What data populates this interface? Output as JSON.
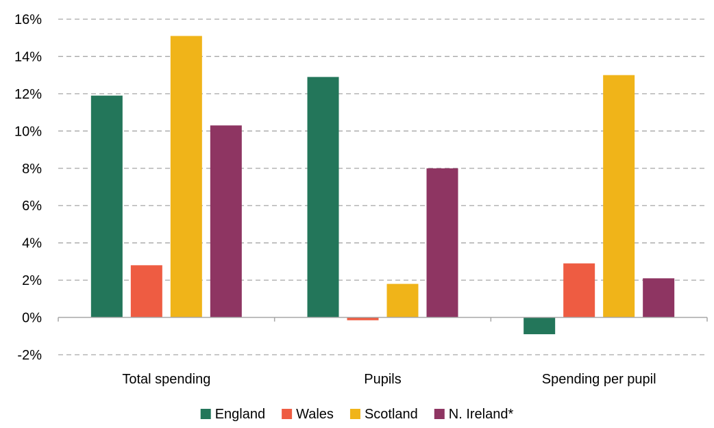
{
  "chart_data": {
    "type": "bar",
    "title": "",
    "xlabel": "",
    "ylabel": "",
    "categories": [
      "Total spending",
      "Pupils",
      "Spending per pupil"
    ],
    "series": [
      {
        "name": "England",
        "color": "#23765a",
        "values": [
          11.9,
          12.9,
          -0.9
        ]
      },
      {
        "name": "Wales",
        "color": "#ee5c42",
        "values": [
          2.8,
          -0.15,
          2.9
        ]
      },
      {
        "name": "Scotland",
        "color": "#f0b419",
        "values": [
          15.1,
          1.8,
          13.0
        ]
      },
      {
        "name": "N. Ireland*",
        "color": "#8e3562",
        "values": [
          10.3,
          8.0,
          2.1
        ]
      }
    ],
    "ylim": [
      -2,
      16
    ],
    "yticks": [
      -2,
      0,
      2,
      4,
      6,
      8,
      10,
      12,
      14,
      16
    ],
    "ytick_format": "{v}%",
    "grid": true,
    "legend_position": "bottom"
  }
}
